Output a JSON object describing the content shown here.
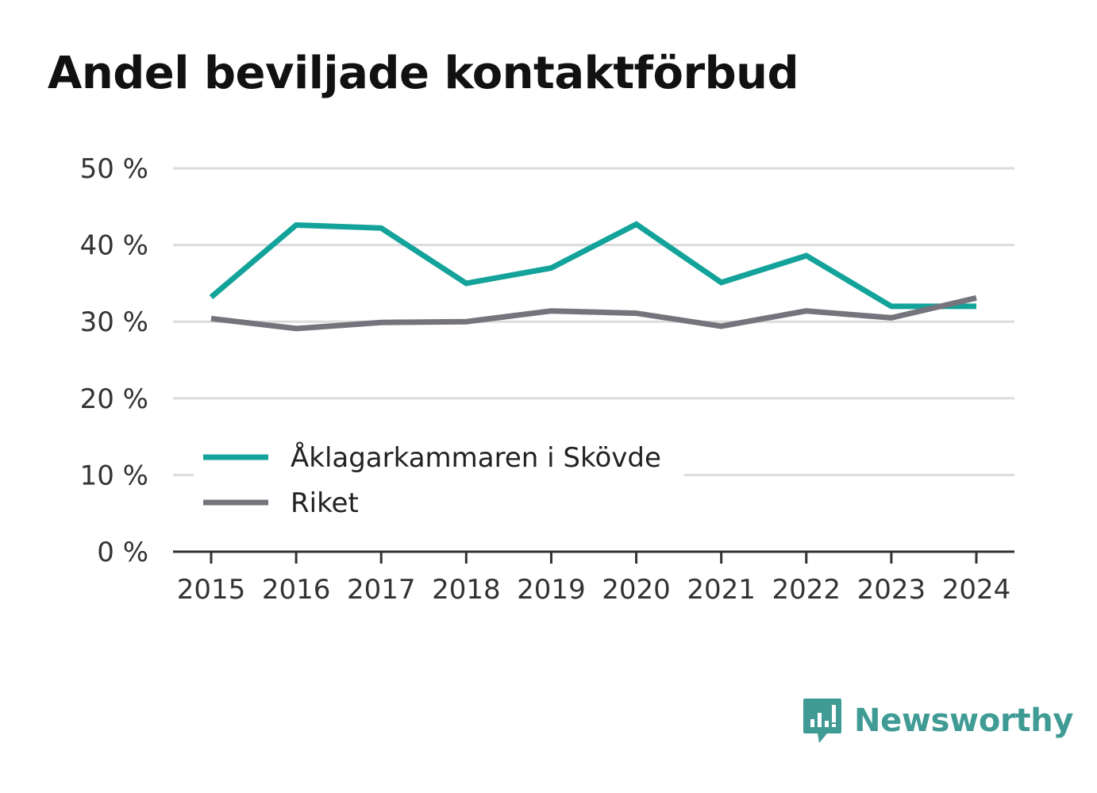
{
  "chart_data": {
    "type": "line",
    "title": "Andel beviljade kontaktförbud",
    "x": [
      "2015",
      "2016",
      "2017",
      "2018",
      "2019",
      "2020",
      "2021",
      "2022",
      "2023",
      "2024"
    ],
    "yticks": [
      "0 %",
      "10 %",
      "20 %",
      "30 %",
      "40 %",
      "50 %"
    ],
    "ylim": [
      0,
      50
    ],
    "grid": true,
    "legend_position": "bottom-left",
    "series": [
      {
        "name": "Åklagarkammaren i Skövde",
        "color": "#13a39a",
        "values": [
          33.2,
          42.6,
          42.2,
          35.0,
          37.0,
          42.7,
          35.1,
          38.6,
          32.0,
          32.0
        ]
      },
      {
        "name": "Riket",
        "color": "#75747c",
        "values": [
          30.4,
          29.1,
          29.9,
          30.0,
          31.4,
          31.1,
          29.4,
          31.4,
          30.5,
          33.1
        ]
      }
    ]
  },
  "brand": {
    "name": "Newsworthy",
    "icon": "newsworthy-logo-icon",
    "color": "#3f9b94"
  }
}
